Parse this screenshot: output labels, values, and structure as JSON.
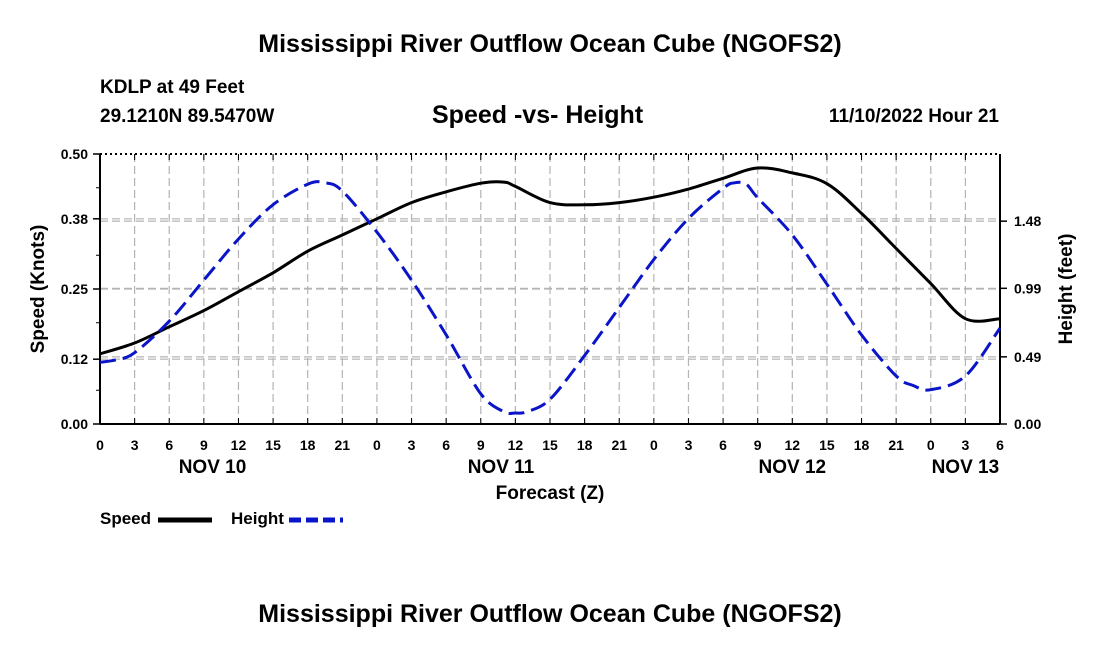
{
  "header": {
    "title": "Mississippi River Outflow Ocean Cube (NGOFS2)",
    "station": "KDLP at 49 Feet",
    "coords": "29.1210N  89.5470W",
    "subtitle": "Speed -vs- Height",
    "datetime": "11/10/2022 Hour 21"
  },
  "footer": {
    "title": "Mississippi River Outflow Ocean Cube (NGOFS2)"
  },
  "legend": {
    "speed_label": "Speed",
    "height_label": "Height"
  },
  "colors": {
    "speed": "#000000",
    "height": "#0a14c8",
    "grid": "#b4b4b4"
  },
  "chart_data": {
    "type": "line",
    "title": "Speed -vs- Height",
    "xlabel": "Forecast (Z)",
    "ylabel": "Speed (Knots)",
    "y2label": "Height (feet)",
    "xlim": [
      0,
      78
    ],
    "ylim": [
      0,
      0.5
    ],
    "y2lim": [
      0,
      1.97
    ],
    "x_ticks": [
      0,
      3,
      6,
      9,
      12,
      15,
      18,
      21,
      24,
      27,
      30,
      33,
      36,
      39,
      42,
      45,
      48,
      51,
      54,
      57,
      60,
      63,
      66,
      69,
      72,
      75,
      78
    ],
    "x_tick_labels": [
      "0",
      "3",
      "6",
      "9",
      "12",
      "15",
      "18",
      "21",
      "0",
      "3",
      "6",
      "9",
      "12",
      "15",
      "18",
      "21",
      "0",
      "3",
      "6",
      "9",
      "12",
      "15",
      "18",
      "21",
      "0",
      "3",
      "6"
    ],
    "day_labels": [
      {
        "label": "NOV 10",
        "x": 9.75
      },
      {
        "label": "NOV 11",
        "x": 34.75
      },
      {
        "label": "NOV 12",
        "x": 60
      },
      {
        "label": "NOV 13",
        "x": 75
      }
    ],
    "y_ticks": [
      0.0,
      0.12,
      0.25,
      0.38,
      0.5
    ],
    "y_tick_labels": [
      "0.00",
      "0.12",
      "0.25",
      "0.38",
      "0.50"
    ],
    "y2_ticks": [
      0.0,
      0.49,
      0.99,
      1.48
    ],
    "y2_tick_labels": [
      "0.00",
      "0.49",
      "0.99",
      "1.48"
    ],
    "grid": true,
    "legend_position": "bottom-left",
    "series": [
      {
        "name": "Speed",
        "axis": "left",
        "style": "solid",
        "x": [
          0,
          3,
          6,
          9,
          12,
          15,
          18,
          21,
          24,
          27,
          30,
          33,
          35,
          36,
          39,
          42,
          45,
          48,
          51,
          54,
          57,
          60,
          63,
          66,
          69,
          72,
          75,
          78
        ],
        "values": [
          0.13,
          0.15,
          0.18,
          0.21,
          0.245,
          0.28,
          0.32,
          0.35,
          0.38,
          0.41,
          0.43,
          0.446,
          0.448,
          0.44,
          0.41,
          0.406,
          0.41,
          0.42,
          0.435,
          0.455,
          0.474,
          0.465,
          0.445,
          0.39,
          0.325,
          0.26,
          0.195,
          0.195
        ]
      },
      {
        "name": "Height",
        "axis": "right",
        "style": "dashed",
        "x": [
          0,
          1.5,
          3,
          6,
          9,
          12,
          15,
          18,
          19.5,
          21,
          24,
          27,
          30,
          33,
          35,
          36,
          37,
          39,
          42,
          45,
          48,
          51,
          54,
          55,
          56,
          57,
          60,
          63,
          66,
          69,
          70.5,
          72,
          75,
          78
        ],
        "values": [
          0.45,
          0.47,
          0.52,
          0.75,
          1.05,
          1.35,
          1.6,
          1.75,
          1.76,
          1.7,
          1.4,
          1.05,
          0.65,
          0.22,
          0.09,
          0.08,
          0.09,
          0.18,
          0.5,
          0.85,
          1.2,
          1.5,
          1.72,
          1.76,
          1.75,
          1.65,
          1.38,
          1.02,
          0.65,
          0.35,
          0.28,
          0.25,
          0.35,
          0.7
        ]
      }
    ]
  }
}
